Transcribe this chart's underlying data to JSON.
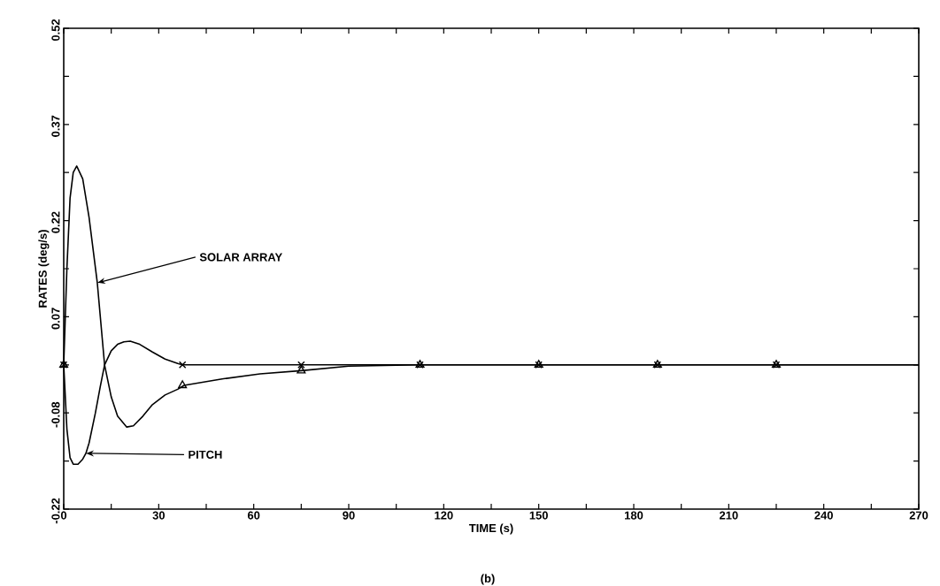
{
  "chart_data": {
    "type": "line",
    "xlabel": "TIME (s)",
    "ylabel": "RATES  (deg/s)",
    "xlim": [
      0,
      270
    ],
    "xticks": [
      0,
      {
        "value": 15,
        "label": null
      },
      30,
      {
        "value": 45,
        "label": null
      },
      60,
      {
        "value": 75,
        "label": null
      },
      90,
      {
        "value": 105,
        "label": null
      },
      120,
      {
        "value": 135,
        "label": null
      },
      150,
      {
        "value": 165,
        "label": null
      },
      180,
      {
        "value": 195,
        "label": null
      },
      210,
      {
        "value": 225,
        "label": null
      },
      240,
      {
        "value": 255,
        "label": null
      },
      270
    ],
    "ylim": [
      -0.225,
      0.525
    ],
    "yticks": [
      {
        "value": -0.225,
        "label": "-0.22"
      },
      {
        "value": -0.15,
        "label": null
      },
      {
        "value": -0.075,
        "label": "-0.08"
      },
      {
        "value": 0,
        "label": null
      },
      {
        "value": 0.075,
        "label": "0.07"
      },
      {
        "value": 0.15,
        "label": null
      },
      {
        "value": 0.225,
        "label": "0.22"
      },
      {
        "value": 0.3,
        "label": null
      },
      {
        "value": 0.375,
        "label": "0.37"
      },
      {
        "value": 0.45,
        "label": null
      },
      {
        "value": 0.525,
        "label": "0.52"
      }
    ],
    "grid": false,
    "series": [
      {
        "color": "#000000",
        "marker": "none",
        "line_style": "solid",
        "x": [
          0,
          1,
          2,
          3,
          4.1,
          6,
          8,
          10.6,
          12.9,
          15,
          17,
          19.9,
          22,
          25,
          28,
          32,
          36,
          38,
          50,
          62,
          75,
          90,
          112.5,
          270
        ],
        "values": [
          0,
          0.15,
          0.26,
          0.3,
          0.31,
          0.29,
          0.23,
          0.128,
          0,
          -0.05,
          -0.08,
          -0.097,
          -0.095,
          -0.08,
          -0.062,
          -0.047,
          -0.038,
          -0.032,
          -0.022,
          -0.014,
          -0.009,
          -0.002,
          0,
          0
        ]
      },
      {
        "color": "#000000",
        "marker": "none",
        "line_style": "solid",
        "x": [
          0,
          1,
          2,
          3,
          4.5,
          6,
          7,
          8,
          10,
          11.5,
          12.9,
          15,
          17,
          19,
          21,
          24,
          28,
          32,
          36,
          37.5,
          270
        ],
        "values": [
          0,
          -0.1,
          -0.145,
          -0.155,
          -0.155,
          -0.147,
          -0.138,
          -0.122,
          -0.075,
          -0.035,
          0,
          0.022,
          0.032,
          0.036,
          0.037,
          0.032,
          0.02,
          0.009,
          0.002,
          0,
          0
        ]
      },
      {
        "type": "scatter",
        "color": "#000000",
        "marker": "triangle",
        "x": [
          0,
          37.5,
          75,
          112.5,
          150,
          187.5,
          225
        ],
        "values": [
          0,
          -0.032,
          -0.009,
          0,
          0,
          0,
          0
        ]
      },
      {
        "type": "scatter",
        "color": "#000000",
        "marker": "cross",
        "x": [
          0,
          37.5,
          75,
          112.5,
          150,
          187.5,
          225
        ],
        "values": [
          0,
          0,
          0,
          0,
          0,
          0,
          0
        ]
      }
    ],
    "annotations": [
      {
        "text": "SOLAR ARRAY",
        "x": 10.6,
        "y": 0.128
      },
      {
        "text": "PITCH",
        "x": 7,
        "y": -0.138
      },
      "(b)"
    ]
  }
}
